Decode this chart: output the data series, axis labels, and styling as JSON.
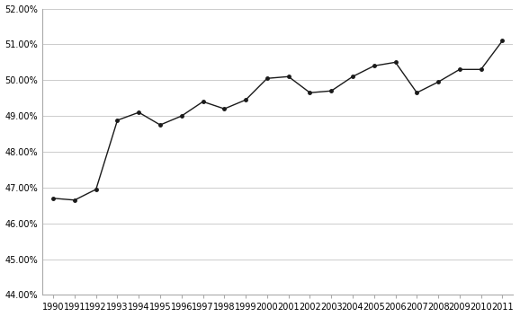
{
  "years": [
    1990,
    1991,
    1992,
    1993,
    1994,
    1995,
    1996,
    1997,
    1998,
    1999,
    2000,
    2001,
    2002,
    2003,
    2004,
    2005,
    2006,
    2007,
    2008,
    2009,
    2010,
    2011
  ],
  "values": [
    0.467,
    0.4665,
    0.4695,
    0.4888,
    0.491,
    0.4875,
    0.49,
    0.494,
    0.492,
    0.4945,
    0.5005,
    0.501,
    0.4965,
    0.497,
    0.501,
    0.504,
    0.505,
    0.4965,
    0.4995,
    0.503,
    0.503,
    0.511
  ],
  "ylim": [
    0.44,
    0.52
  ],
  "yticks": [
    0.44,
    0.45,
    0.46,
    0.47,
    0.48,
    0.49,
    0.5,
    0.51,
    0.52
  ],
  "line_color": "#1a1a1a",
  "marker": "o",
  "marker_size": 2.5,
  "line_width": 1.0,
  "bg_color": "#ffffff",
  "grid_color": "#cccccc",
  "tick_fontsize": 7,
  "spine_color": "#aaaaaa"
}
